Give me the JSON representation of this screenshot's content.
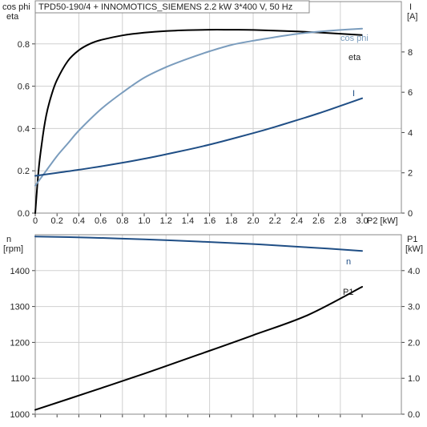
{
  "title_box": "TPD50-190/4 + INNOMOTICS_SIEMENS   2.2 kW   3*400 V, 50 Hz",
  "chart_data": [
    {
      "type": "line",
      "xlabel": "P2 [kW]",
      "x_ticks": [
        "0",
        "0.2",
        "0.4",
        "0.6",
        "0.8",
        "1.0",
        "1.2",
        "1.4",
        "1.6",
        "1.8",
        "2.0",
        "2.2",
        "2.4",
        "2.6",
        "2.8",
        "3.0"
      ],
      "xlim": [
        0,
        3.36
      ],
      "left_axis": {
        "label_line1": "cos phi",
        "label_line2": "eta",
        "ticks": [
          "0.0",
          "0.2",
          "0.4",
          "0.6",
          "0.8"
        ],
        "ylim": [
          0,
          1.0
        ]
      },
      "right_axis": {
        "label_line1": "I",
        "label_line2": "[A]",
        "ticks": [
          "0",
          "2",
          "4",
          "6",
          "8"
        ],
        "ylim": [
          0,
          10.5
        ]
      },
      "grid": true,
      "series": [
        {
          "name": "eta",
          "axis": "left",
          "color": "#000000",
          "x": [
            0,
            0.03,
            0.06,
            0.1,
            0.15,
            0.2,
            0.3,
            0.4,
            0.5,
            0.6,
            0.8,
            1.0,
            1.2,
            1.4,
            1.6,
            1.8,
            2.0,
            2.2,
            2.4,
            2.6,
            2.8,
            3.0
          ],
          "y": [
            0.0,
            0.2,
            0.33,
            0.46,
            0.56,
            0.63,
            0.72,
            0.77,
            0.8,
            0.818,
            0.84,
            0.853,
            0.861,
            0.865,
            0.867,
            0.867,
            0.866,
            0.863,
            0.859,
            0.854,
            0.848,
            0.842
          ]
        },
        {
          "name": "cos phi",
          "axis": "left",
          "color": "#7a9cbd",
          "x": [
            0,
            0.1,
            0.2,
            0.3,
            0.4,
            0.6,
            0.8,
            1.0,
            1.2,
            1.4,
            1.6,
            1.8,
            2.0,
            2.2,
            2.4,
            2.6,
            2.8,
            3.0
          ],
          "y": [
            0.13,
            0.2,
            0.27,
            0.33,
            0.39,
            0.49,
            0.57,
            0.64,
            0.69,
            0.73,
            0.765,
            0.795,
            0.815,
            0.832,
            0.847,
            0.858,
            0.866,
            0.872
          ]
        },
        {
          "name": "I",
          "axis": "right",
          "color": "#1f4e85",
          "x": [
            0,
            0.2,
            0.4,
            0.6,
            0.8,
            1.0,
            1.2,
            1.4,
            1.6,
            1.8,
            2.0,
            2.2,
            2.4,
            2.6,
            2.8,
            3.0
          ],
          "y": [
            1.85,
            2.0,
            2.15,
            2.32,
            2.5,
            2.7,
            2.92,
            3.15,
            3.4,
            3.68,
            3.97,
            4.28,
            4.61,
            4.95,
            5.32,
            5.7
          ]
        }
      ]
    },
    {
      "type": "line",
      "xlim": [
        0,
        3.36
      ],
      "left_axis": {
        "label_line1": "n",
        "label_line2": "[rpm]",
        "ticks": [
          "1000",
          "1100",
          "1200",
          "1300",
          "1400"
        ],
        "ylim": [
          1000,
          1500
        ]
      },
      "right_axis": {
        "label_line1": "P1",
        "label_line2": "[kW]",
        "ticks": [
          "0.0",
          "1.0",
          "2.0",
          "3.0",
          "4.0"
        ],
        "ylim": [
          0,
          5.0
        ]
      },
      "grid": true,
      "series": [
        {
          "name": "n",
          "axis": "left",
          "color": "#1f4e85",
          "x": [
            0,
            0.5,
            1.0,
            1.5,
            2.0,
            2.5,
            3.0
          ],
          "y": [
            1495,
            1492,
            1487,
            1481,
            1474,
            1465,
            1455
          ]
        },
        {
          "name": "P1",
          "axis": "right",
          "color": "#000000",
          "x": [
            0,
            0.5,
            1.0,
            1.5,
            2.0,
            2.5,
            3.0
          ],
          "y": [
            0.12,
            0.62,
            1.13,
            1.66,
            2.2,
            2.76,
            3.55
          ]
        }
      ]
    }
  ]
}
